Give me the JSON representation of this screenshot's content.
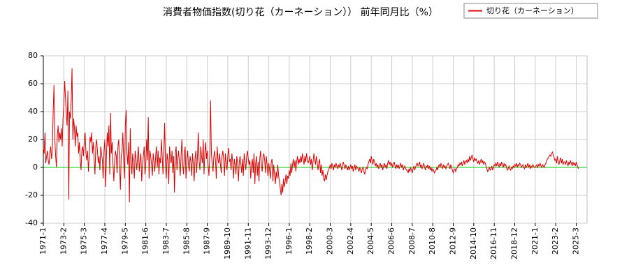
{
  "chart_data": {
    "type": "line",
    "title": "消費者物価指数(切り花（カーネーション）） 前年同月比（%）",
    "categories": [
      "1971-1",
      null,
      null,
      null,
      null,
      null,
      null,
      null,
      null,
      null,
      null,
      null,
      null,
      null,
      null,
      null,
      null,
      null,
      null,
      null,
      null,
      null,
      null,
      null,
      null,
      "1973-2",
      null,
      null,
      null,
      null,
      null,
      null,
      null,
      null,
      null,
      null,
      null,
      null,
      null,
      null,
      null,
      null,
      null,
      null,
      null,
      null,
      null,
      null,
      null,
      null,
      "1975-3",
      null,
      null,
      null,
      null,
      null,
      null,
      null,
      null,
      null,
      null,
      null,
      null,
      null,
      null,
      null,
      null,
      null,
      null,
      null,
      null,
      null,
      null,
      null,
      null,
      "1977-4",
      null,
      null,
      null,
      null,
      null,
      null,
      null,
      null,
      null,
      null,
      null,
      null,
      null,
      null,
      null,
      null,
      null,
      null,
      null,
      null,
      null,
      null,
      null,
      null,
      "1979-5",
      null,
      null,
      null,
      null,
      null,
      null,
      null,
      null,
      null,
      null,
      null,
      null,
      null,
      null,
      null,
      null,
      null,
      null,
      null,
      null,
      null,
      null,
      null,
      null,
      "1981-6",
      null,
      null,
      null,
      null,
      null,
      null,
      null,
      null,
      null,
      null,
      null,
      null,
      null,
      null,
      null,
      null,
      null,
      null,
      null,
      null,
      null,
      null,
      null,
      null,
      "1983-7",
      null,
      null,
      null,
      null,
      null,
      null,
      null,
      null,
      null,
      null,
      null,
      null,
      null,
      null,
      null,
      null,
      null,
      null,
      null,
      null,
      null,
      null,
      null,
      null,
      "1985-8",
      null,
      null,
      null,
      null,
      null,
      null,
      null,
      null,
      null,
      null,
      null,
      null,
      null,
      null,
      null,
      null,
      null,
      null,
      null,
      null,
      null,
      null,
      null,
      null,
      "1987-9",
      null,
      null,
      null,
      null,
      null,
      null,
      null,
      null,
      null,
      null,
      null,
      null,
      null,
      null,
      null,
      null,
      null,
      null,
      null,
      null,
      null,
      null,
      null,
      null,
      "1989-10",
      null,
      null,
      null,
      null,
      null,
      null,
      null,
      null,
      null,
      null,
      null,
      null,
      null,
      null,
      null,
      null,
      null,
      null,
      null,
      null,
      null,
      null,
      null,
      null,
      "1991-11",
      null,
      null,
      null,
      null,
      null,
      null,
      null,
      null,
      null,
      null,
      null,
      null,
      null,
      null,
      null,
      null,
      null,
      null,
      null,
      null,
      null,
      null,
      null,
      null,
      "1993-12",
      null,
      null,
      null,
      null,
      null,
      null,
      null,
      null,
      null,
      null,
      null,
      null,
      null,
      null,
      null,
      null,
      null,
      null,
      null,
      null,
      null,
      null,
      null,
      null,
      "1996-1",
      null,
      null,
      null,
      null,
      null,
      null,
      null,
      null,
      null,
      null,
      null,
      null,
      null,
      null,
      null,
      null,
      null,
      null,
      null,
      null,
      null,
      null,
      null,
      null,
      "1998-2",
      null,
      null,
      null,
      null,
      null,
      null,
      null,
      null,
      null,
      null,
      null,
      null,
      null,
      null,
      null,
      null,
      null,
      null,
      null,
      null,
      null,
      null,
      null,
      null,
      "2000-3",
      null,
      null,
      null,
      null,
      null,
      null,
      null,
      null,
      null,
      null,
      null,
      null,
      null,
      null,
      null,
      null,
      null,
      null,
      null,
      null,
      null,
      null,
      null,
      null,
      "2002-4",
      null,
      null,
      null,
      null,
      null,
      null,
      null,
      null,
      null,
      null,
      null,
      null,
      null,
      null,
      null,
      null,
      null,
      null,
      null,
      null,
      null,
      null,
      null,
      null,
      "2004-5",
      null,
      null,
      null,
      null,
      null,
      null,
      null,
      null,
      null,
      null,
      null,
      null,
      null,
      null,
      null,
      null,
      null,
      null,
      null,
      null,
      null,
      null,
      null,
      null,
      "2006-6",
      null,
      null,
      null,
      null,
      null,
      null,
      null,
      null,
      null,
      null,
      null,
      null,
      null,
      null,
      null,
      null,
      null,
      null,
      null,
      null,
      null,
      null,
      null,
      null,
      "2008-7",
      null,
      null,
      null,
      null,
      null,
      null,
      null,
      null,
      null,
      null,
      null,
      null,
      null,
      null,
      null,
      null,
      null,
      null,
      null,
      null,
      null,
      null,
      null,
      null,
      "2010-8",
      null,
      null,
      null,
      null,
      null,
      null,
      null,
      null,
      null,
      null,
      null,
      null,
      null,
      null,
      null,
      null,
      null,
      null,
      null,
      null,
      null,
      null,
      null,
      null,
      "2012-9",
      null,
      null,
      null,
      null,
      null,
      null,
      null,
      null,
      null,
      null,
      null,
      null,
      null,
      null,
      null,
      null,
      null,
      null,
      null,
      null,
      null,
      null,
      null,
      null,
      "2014-10",
      null,
      null,
      null,
      null,
      null,
      null,
      null,
      null,
      null,
      null,
      null,
      null,
      null,
      null,
      null,
      null,
      null,
      null,
      null,
      null,
      null,
      null,
      null,
      null,
      "2016-11",
      null,
      null,
      null,
      null,
      null,
      null,
      null,
      null,
      null,
      null,
      null,
      null,
      null,
      null,
      null,
      null,
      null,
      null,
      null,
      null,
      null,
      null,
      null,
      null,
      "2018-12",
      null,
      null,
      null,
      null,
      null,
      null,
      null,
      null,
      null,
      null,
      null,
      null,
      null,
      null,
      null,
      null,
      null,
      null,
      null,
      null,
      null,
      null,
      null,
      null,
      "2021-1",
      null,
      null,
      null,
      null,
      null,
      null,
      null,
      null,
      null,
      null,
      null,
      null,
      null,
      null,
      null,
      null,
      null,
      null,
      null,
      null,
      null,
      null,
      null,
      null,
      "2023-2",
      null,
      null,
      null,
      null,
      null,
      null,
      null,
      null,
      null,
      null,
      null,
      null,
      null,
      null,
      null,
      null,
      null,
      null,
      null,
      null,
      null,
      null,
      null,
      null,
      "2025-3",
      null,
      null,
      null
    ],
    "series": [
      {
        "name": "切り花（カーネーション）",
        "color": "#e00000",
        "values": [
          14,
          10,
          25,
          3,
          8,
          12,
          5,
          2,
          10,
          15,
          6,
          12,
          40,
          59,
          20,
          8,
          0,
          22,
          30,
          18,
          25,
          20,
          28,
          15,
          35,
          45,
          62,
          50,
          38,
          30,
          55,
          -23,
          40,
          35,
          48,
          71,
          20,
          35,
          28,
          15,
          30,
          22,
          25,
          10,
          18,
          5,
          -2,
          12,
          15,
          8,
          20,
          25,
          10,
          5,
          12,
          -3,
          8,
          22,
          18,
          25,
          10,
          18,
          5,
          -5,
          15,
          20,
          12,
          3,
          8,
          -2,
          15,
          10,
          5,
          -8,
          12,
          20,
          -14,
          8,
          25,
          15,
          30,
          -5,
          39,
          10,
          18,
          2,
          -10,
          5,
          12,
          8,
          -4,
          15,
          20,
          3,
          -16,
          8,
          12,
          25,
          5,
          -8,
          30,
          41,
          10,
          2,
          18,
          -25,
          28,
          5,
          -5,
          10,
          3,
          -8,
          12,
          6,
          -2,
          8,
          15,
          -3,
          5,
          10,
          -10,
          2,
          8,
          15,
          -5,
          3,
          20,
          5,
          36,
          -8,
          12,
          8,
          2,
          -6,
          10,
          4,
          -3,
          8,
          15,
          0,
          12,
          -5,
          7,
          3,
          20,
          8,
          -5,
          12,
          32,
          2,
          -8,
          10,
          5,
          -12,
          15,
          6,
          3,
          12,
          -4,
          8,
          -18,
          10,
          15,
          -2,
          6,
          12,
          3,
          -6,
          8,
          20,
          2,
          -5,
          10,
          15,
          -8,
          5,
          12,
          2,
          -3,
          8,
          4,
          -6,
          10,
          2,
          -10,
          6,
          12,
          -4,
          8,
          25,
          5,
          -2,
          15,
          8,
          3,
          20,
          -5,
          10,
          18,
          6,
          12,
          2,
          -6,
          8,
          48,
          10,
          2,
          -3,
          8,
          12,
          5,
          -8,
          15,
          6,
          3,
          10,
          2,
          -4,
          8,
          12,
          5,
          -6,
          10,
          3,
          -2,
          8,
          14,
          4,
          6,
          -2,
          10,
          4,
          -8,
          6,
          2,
          -5,
          8,
          3,
          -10,
          4,
          8,
          2,
          -4,
          6,
          -6,
          10,
          4,
          -2,
          8,
          12,
          6,
          2,
          5,
          -8,
          2,
          6,
          -4,
          10,
          -12,
          3,
          8,
          -6,
          4,
          -10,
          6,
          12,
          2,
          -3,
          8,
          10,
          5,
          -4,
          8,
          2,
          -6,
          3,
          -2,
          -8,
          4,
          6,
          -10,
          2,
          -5,
          -12,
          -3,
          -8,
          2,
          -6,
          -10,
          -15,
          -20,
          -12,
          -18,
          -8,
          -14,
          -10,
          -5,
          -12,
          -6,
          -8,
          -2,
          -6,
          3,
          -4,
          2,
          6,
          0,
          5,
          -3,
          4,
          8,
          2,
          6,
          3,
          8,
          4,
          10,
          6,
          2,
          8,
          4,
          10,
          6,
          3,
          5,
          8,
          2,
          6,
          -2,
          4,
          10,
          6,
          2,
          8,
          4,
          -2,
          3,
          6,
          -4,
          2,
          -6,
          -2,
          -8,
          -10,
          -5,
          -9,
          -6,
          -3,
          -2,
          0,
          2,
          -1,
          3,
          1,
          -2,
          2,
          0,
          3,
          1,
          -1,
          2,
          0,
          3,
          1,
          -2,
          2,
          4,
          1,
          -1,
          2,
          0,
          -2,
          1,
          -2,
          0,
          2,
          -1,
          1,
          -3,
          0,
          2,
          -2,
          1,
          0,
          -1,
          -3,
          0,
          -2,
          -4,
          -1,
          0,
          -3,
          -5,
          -2,
          0,
          -1,
          2,
          4,
          6,
          3,
          8,
          5,
          2,
          6,
          4,
          1,
          3,
          0,
          2,
          -1,
          1,
          3,
          0,
          2,
          -2,
          1,
          3,
          0,
          2,
          -1,
          3,
          5,
          2,
          4,
          1,
          3,
          0,
          2,
          4,
          1,
          -1,
          2,
          0,
          2,
          -1,
          1,
          3,
          0,
          2,
          -2,
          0,
          1,
          -1,
          -2,
          -2,
          -4,
          -1,
          -3,
          0,
          -2,
          -4,
          -1,
          1,
          -2,
          0,
          2,
          3,
          1,
          2,
          4,
          0,
          2,
          -1,
          1,
          3,
          0,
          -2,
          1,
          0,
          2,
          -1,
          1,
          -2,
          0,
          -3,
          -1,
          -2,
          -4,
          -3,
          -2,
          0,
          -2,
          1,
          2,
          0,
          3,
          1,
          -1,
          2,
          0,
          1,
          -1,
          1,
          2,
          3,
          1,
          -1,
          2,
          0,
          -2,
          -4,
          -2,
          -1,
          -3,
          -1,
          0,
          2,
          1,
          3,
          2,
          4,
          1,
          3,
          5,
          2,
          4,
          5,
          3,
          6,
          4,
          8,
          5,
          7,
          9,
          6,
          4,
          7,
          5,
          6,
          4,
          3,
          5,
          2,
          4,
          6,
          3,
          5,
          2,
          4,
          3,
          1,
          -1,
          -3,
          -2,
          0,
          -2,
          -1,
          1,
          -2,
          0,
          2,
          1,
          3,
          1,
          4,
          2,
          0,
          3,
          1,
          4,
          2,
          0,
          3,
          1,
          2,
          0,
          -2,
          -1,
          1,
          -1,
          -2,
          0,
          -1,
          1,
          0,
          2,
          1,
          3,
          0,
          2,
          1,
          3,
          2,
          0,
          1,
          2,
          0,
          -1,
          2,
          0,
          1,
          3,
          0,
          2,
          -1,
          1,
          0,
          2,
          1,
          0,
          0,
          1,
          2,
          0,
          2,
          1,
          3,
          1,
          0,
          2,
          1,
          0,
          2,
          3,
          5,
          6,
          7,
          8,
          9,
          8,
          10,
          11,
          9,
          7,
          5,
          6,
          3,
          8,
          4,
          2,
          5,
          7,
          3,
          6,
          2,
          4,
          4,
          2,
          5,
          3,
          1,
          4,
          2,
          5,
          3,
          1,
          4,
          2,
          3,
          1,
          4,
          2,
          0,
          -1
        ]
      }
    ],
    "ylim": [
      -40,
      80
    ],
    "yticks": [
      -40,
      -20,
      0,
      20,
      40,
      60,
      80
    ],
    "grid": true,
    "zero_line_color": "#00cc00",
    "legend": "top-right"
  }
}
